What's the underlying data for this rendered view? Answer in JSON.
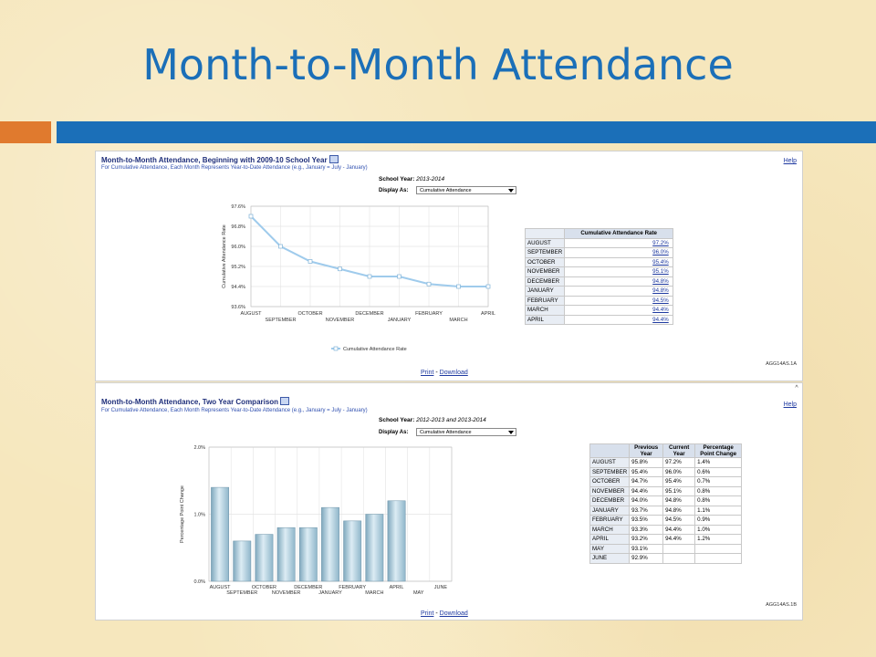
{
  "slide": {
    "title": "Month-to-Month Attendance"
  },
  "panel1": {
    "title": "Month-to-Month Attendance, Beginning with 2009-10 School Year",
    "subtitle": "For Cumulative Attendance, Each Month Represents Year-to-Date Attendance (e.g., January = July - January)",
    "help": "Help",
    "school_year_label": "School Year:",
    "school_year_value": "2013-2014",
    "display_as_label": "Display As:",
    "display_as_value": "Cumulative Attendance",
    "print": "Print",
    "separator": "-",
    "download": "Download",
    "report_id": "AGG14AS.1A",
    "table": {
      "header": "Cumulative Attendance Rate",
      "rows": [
        {
          "month": "AUGUST",
          "value": "97.2%"
        },
        {
          "month": "SEPTEMBER",
          "value": "96.0%"
        },
        {
          "month": "OCTOBER",
          "value": "95.4%"
        },
        {
          "month": "NOVEMBER",
          "value": "95.1%"
        },
        {
          "month": "DECEMBER",
          "value": "94.8%"
        },
        {
          "month": "JANUARY",
          "value": "94.8%"
        },
        {
          "month": "FEBRUARY",
          "value": "94.5%"
        },
        {
          "month": "MARCH",
          "value": "94.4%"
        },
        {
          "month": "APRIL",
          "value": "94.4%"
        }
      ]
    }
  },
  "panel2": {
    "title": "Month-to-Month Attendance, Two Year Comparison",
    "subtitle": "For Cumulative Attendance, Each Month Represents Year-to-Date Attendance (e.g., January = July - January)",
    "help": "Help",
    "school_year_label": "School Year:",
    "school_year_value": "2012-2013 and 2013-2014",
    "display_as_label": "Display As:",
    "display_as_value": "Cumulative Attendance",
    "print": "Print",
    "separator": "-",
    "download": "Download",
    "report_id": "AGG14AS.1B",
    "table": {
      "headers": [
        "",
        "Previous Year",
        "Current Year",
        "Percentage Point Change"
      ],
      "rows": [
        {
          "month": "AUGUST",
          "prev": "95.8%",
          "curr": "97.2%",
          "change": "1.4%"
        },
        {
          "month": "SEPTEMBER",
          "prev": "95.4%",
          "curr": "96.0%",
          "change": "0.6%"
        },
        {
          "month": "OCTOBER",
          "prev": "94.7%",
          "curr": "95.4%",
          "change": "0.7%"
        },
        {
          "month": "NOVEMBER",
          "prev": "94.4%",
          "curr": "95.1%",
          "change": "0.8%"
        },
        {
          "month": "DECEMBER",
          "prev": "94.0%",
          "curr": "94.8%",
          "change": "0.8%"
        },
        {
          "month": "JANUARY",
          "prev": "93.7%",
          "curr": "94.8%",
          "change": "1.1%"
        },
        {
          "month": "FEBRUARY",
          "prev": "93.5%",
          "curr": "94.5%",
          "change": "0.9%"
        },
        {
          "month": "MARCH",
          "prev": "93.3%",
          "curr": "94.4%",
          "change": "1.0%"
        },
        {
          "month": "APRIL",
          "prev": "93.2%",
          "curr": "94.4%",
          "change": "1.2%"
        },
        {
          "month": "MAY",
          "prev": "93.1%",
          "curr": "",
          "change": ""
        },
        {
          "month": "JUNE",
          "prev": "92.9%",
          "curr": "",
          "change": ""
        }
      ]
    }
  },
  "chart_data": [
    {
      "type": "line",
      "categories": [
        "AUGUST",
        "SEPTEMBER",
        "OCTOBER",
        "NOVEMBER",
        "DECEMBER",
        "JANUARY",
        "FEBRUARY",
        "MARCH",
        "APRIL"
      ],
      "series": [
        {
          "name": "Cumulative Attendance Rate",
          "values": [
            97.2,
            96.0,
            95.4,
            95.1,
            94.8,
            94.8,
            94.5,
            94.4,
            94.4
          ]
        }
      ],
      "yticks": [
        "97.6%",
        "96.8%",
        "96.0%",
        "95.2%",
        "94.4%",
        "93.6%"
      ],
      "ylim": [
        93.6,
        97.6
      ],
      "ylabel": "Cumulative Attendance Rate",
      "legend": "bottom",
      "grid": true,
      "color": "#9fcbec"
    },
    {
      "type": "bar",
      "categories": [
        "AUGUST",
        "SEPTEMBER",
        "OCTOBER",
        "NOVEMBER",
        "DECEMBER",
        "JANUARY",
        "FEBRUARY",
        "MARCH",
        "APRIL",
        "MAY",
        "JUNE"
      ],
      "values": [
        1.4,
        0.6,
        0.7,
        0.8,
        0.8,
        1.1,
        0.9,
        1.0,
        1.2,
        null,
        null
      ],
      "yticks": [
        "2.0%",
        "1.0%",
        "0.0%"
      ],
      "ylim": [
        0,
        2.0
      ],
      "ylabel": "Percentage Point Change",
      "grid": true,
      "color": "#9cc3d6"
    }
  ]
}
